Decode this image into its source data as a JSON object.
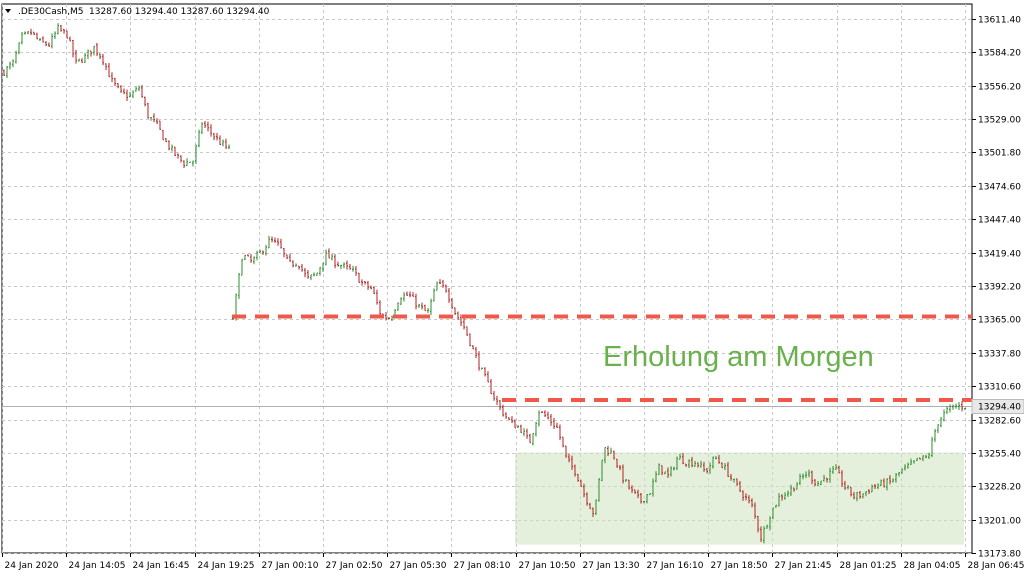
{
  "header": {
    "symbol": ".DE30Cash,M5",
    "ohlc": "13287.60 13294.40 13287.60 13294.40"
  },
  "chart_data": {
    "type": "candlestick",
    "ylim": [
      13173.6,
      13623.4
    ],
    "y_ticks": [
      "13611.40",
      "13584.20",
      "13556.20",
      "13529.00",
      "13501.80",
      "13474.60",
      "13447.40",
      "13419.40",
      "13392.20",
      "13365.00",
      "13337.80",
      "13310.60",
      "13282.60",
      "13255.40",
      "13228.20",
      "13201.00",
      "13173.80"
    ],
    "x_ticks": [
      "24 Jan 2020",
      "24 Jan 14:05",
      "24 Jan 16:45",
      "24 Jan 19:25",
      "27 Jan 00:10",
      "27 Jan 02:50",
      "27 Jan 05:30",
      "27 Jan 08:10",
      "27 Jan 10:50",
      "27 Jan 13:30",
      "27 Jan 16:10",
      "27 Jan 18:50",
      "27 Jan 21:45",
      "28 Jan 01:25",
      "28 Jan 04:05",
      "28 Jan 06:45"
    ],
    "current_price": "13294.40",
    "grid": true,
    "annotation": "Erholung am Morgen",
    "levels": [
      13367.4,
      13299.0
    ],
    "zone": {
      "y_top": 13256.0,
      "y_bottom": 13180.5
    },
    "colors": {
      "up": "#2e8b2e",
      "down": "#b22222",
      "level": "#f0584a",
      "zone": "#cfe3c0",
      "annotation": "#6ab04c",
      "grid": "#c8c8c8"
    },
    "segments": [
      {
        "keypoints": [
          [
            13568,
            13575
          ],
          [
            13596,
            13600
          ],
          [
            13592,
            13590
          ],
          [
            13603,
            13598
          ],
          [
            13575,
            13580
          ],
          [
            13588,
            13578
          ],
          [
            13560,
            13550
          ],
          [
            13548,
            13555
          ],
          [
            13532,
            13524
          ],
          [
            13510,
            13500
          ],
          [
            13493,
            13495
          ],
          [
            13526,
            13518
          ],
          [
            13510,
            13504
          ]
        ]
      },
      {
        "keypoints": [
          [
            13366,
            13418
          ],
          [
            13412,
            13420
          ],
          [
            13430,
            13425
          ],
          [
            13410,
            13412
          ],
          [
            13398,
            13402
          ],
          [
            13418,
            13412
          ],
          [
            13408,
            13404
          ],
          [
            13394,
            13390
          ],
          [
            13368,
            13366
          ],
          [
            13384,
            13385
          ],
          [
            13376,
            13370
          ],
          [
            13394,
            13390
          ],
          [
            13370,
            13358
          ],
          [
            13338,
            13320
          ],
          [
            13304,
            13290
          ],
          [
            13280,
            13276
          ],
          [
            13264,
            13290
          ],
          [
            13284,
            13276
          ],
          [
            13250,
            13240
          ],
          [
            13220,
            13205
          ],
          [
            13260,
            13255
          ],
          [
            13236,
            13224
          ],
          [
            13216,
            13224
          ],
          [
            13244,
            13236
          ],
          [
            13252,
            13248
          ],
          [
            13248,
            13240
          ],
          [
            13252,
            13244
          ],
          [
            13232,
            13222
          ],
          [
            13212,
            13186
          ],
          [
            13206,
            13220
          ],
          [
            13224,
            13232
          ],
          [
            13240,
            13230
          ],
          [
            13236,
            13242
          ],
          [
            13228,
            13220
          ],
          [
            13222,
            13228
          ],
          [
            13230,
            13232
          ],
          [
            13240,
            13245
          ],
          [
            13250,
            13252
          ],
          [
            13280,
            13290
          ],
          [
            13294,
            13294
          ]
        ]
      }
    ]
  }
}
